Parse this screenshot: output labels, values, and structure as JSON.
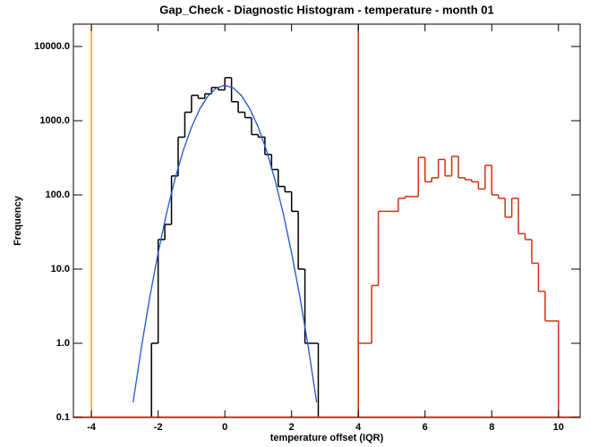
{
  "chart_data": {
    "type": "histogram",
    "title": "Gap_Check - Diagnostic Histogram - temperature - month 01",
    "x_label": "temperature offset (IQR)",
    "y_label": "Frequency",
    "log_y": true,
    "xlim": [
      -4.54,
      10.65
    ],
    "ylim": [
      0.1,
      20000
    ],
    "xticks": [
      -4,
      -2,
      0,
      2,
      4,
      6,
      8,
      10
    ],
    "yticks": [
      0.1,
      {
        "value": 1,
        "label": "1.0"
      },
      {
        "value": 10,
        "label": "10.0"
      },
      {
        "value": 100,
        "label": "100.0"
      },
      {
        "value": 1000,
        "label": "1000.0"
      },
      {
        "value": 10000,
        "label": "10000.0"
      }
    ],
    "series": [
      {
        "color": "#000000",
        "bins": [
          -2.2,
          -2.0,
          -1.8,
          -1.6,
          -1.4,
          -1.2,
          -1.0,
          -0.8,
          -0.6,
          -0.4,
          -0.2,
          0.0,
          0.2,
          0.4,
          0.6,
          0.8,
          1.0,
          1.2,
          1.4,
          1.6,
          1.8,
          2.0,
          2.2,
          2.4,
          2.6,
          2.8
        ],
        "values": [
          1,
          25,
          40,
          180,
          600,
          1300,
          2200,
          2000,
          2300,
          2800,
          2600,
          3800,
          1800,
          1300,
          1100,
          650,
          600,
          350,
          220,
          130,
          110,
          60,
          10,
          1,
          1
        ]
      },
      {
        "color": "#cc3311",
        "bins": [
          4.0,
          4.2,
          4.4,
          4.6,
          4.8,
          5.0,
          5.2,
          5.4,
          5.6,
          5.8,
          6.0,
          6.2,
          6.4,
          6.6,
          6.8,
          7.0,
          7.2,
          7.4,
          7.6,
          7.8,
          8.0,
          8.2,
          8.4,
          8.6,
          8.8,
          9.0,
          9.2,
          9.4,
          9.6,
          9.8,
          10.0
        ],
        "values": [
          1,
          1,
          6,
          60,
          60,
          60,
          90,
          95,
          95,
          320,
          150,
          170,
          300,
          180,
          330,
          170,
          160,
          150,
          120,
          250,
          100,
          90,
          50,
          90,
          30,
          25,
          12,
          5,
          2,
          2
        ]
      }
    ],
    "fit": {
      "color": "#1f55d0",
      "x": [
        -2.75,
        -2.5,
        -2.25,
        -2.0,
        -1.75,
        -1.5,
        -1.25,
        -1.0,
        -0.75,
        -0.5,
        -0.25,
        0.0,
        0.25,
        0.5,
        0.75,
        1.0,
        1.25,
        1.5,
        1.75,
        2.0,
        2.25,
        2.5,
        2.75
      ],
      "values": [
        0.16,
        0.89,
        4.2,
        16.5,
        56,
        161,
        394,
        818,
        1444,
        2168,
        2766,
        3000,
        2766,
        2168,
        1444,
        818,
        394,
        161,
        56,
        16.5,
        4.2,
        0.89,
        0.16
      ]
    },
    "vlines": [
      {
        "x": -4,
        "color": "#f0a020"
      },
      {
        "x": 4,
        "color": "#cc3311"
      }
    ]
  }
}
